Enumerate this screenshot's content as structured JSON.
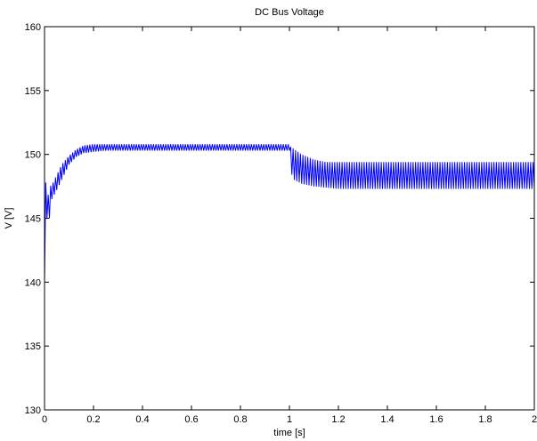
{
  "chart_data": {
    "type": "line",
    "title": "DC Bus Voltage",
    "xlabel": "time [s]",
    "ylabel": "V [V]",
    "xlim": [
      0,
      2
    ],
    "ylim": [
      130,
      160
    ],
    "xticks": [
      0,
      0.2,
      0.4,
      0.6,
      0.8,
      1,
      1.2,
      1.4,
      1.6,
      1.8,
      2
    ],
    "xtick_labels": [
      "0",
      "0.2",
      "0.4",
      "0.6",
      "0.8",
      "1",
      "1.2",
      "1.4",
      "1.6",
      "1.8",
      "2"
    ],
    "yticks": [
      130,
      135,
      140,
      145,
      150,
      155,
      160
    ],
    "ytick_labels": [
      "130",
      "135",
      "140",
      "145",
      "150",
      "155",
      "160"
    ],
    "grid": false,
    "series": [
      {
        "color": "#0000ff",
        "envelope_x": [
          0,
          0.005,
          0.01,
          0.02,
          0.03,
          0.05,
          0.07,
          0.1,
          0.13,
          0.16,
          0.2,
          0.25,
          0.3,
          0.5,
          0.7,
          0.9,
          0.995,
          1.0,
          1.005,
          1.02,
          1.05,
          1.1,
          1.15,
          1.2,
          1.5,
          1.8,
          2.0
        ],
        "envelope_upper": [
          140,
          147.8,
          146.2,
          147.5,
          147.6,
          148.4,
          149.2,
          149.9,
          150.4,
          150.7,
          150.8,
          150.8,
          150.8,
          150.8,
          150.8,
          150.8,
          150.8,
          151.7,
          150.6,
          150.4,
          150.0,
          149.6,
          149.4,
          149.4,
          149.4,
          149.4,
          149.4
        ],
        "envelope_lower": [
          140,
          143.0,
          145.0,
          145.0,
          146.5,
          147.2,
          148.0,
          149.2,
          149.8,
          150.1,
          150.2,
          150.3,
          150.3,
          150.3,
          150.3,
          150.3,
          150.3,
          150.3,
          148.6,
          148.0,
          147.7,
          147.5,
          147.4,
          147.3,
          147.3,
          147.3,
          147.3
        ],
        "oscillation_period_s": 0.01
      }
    ]
  }
}
